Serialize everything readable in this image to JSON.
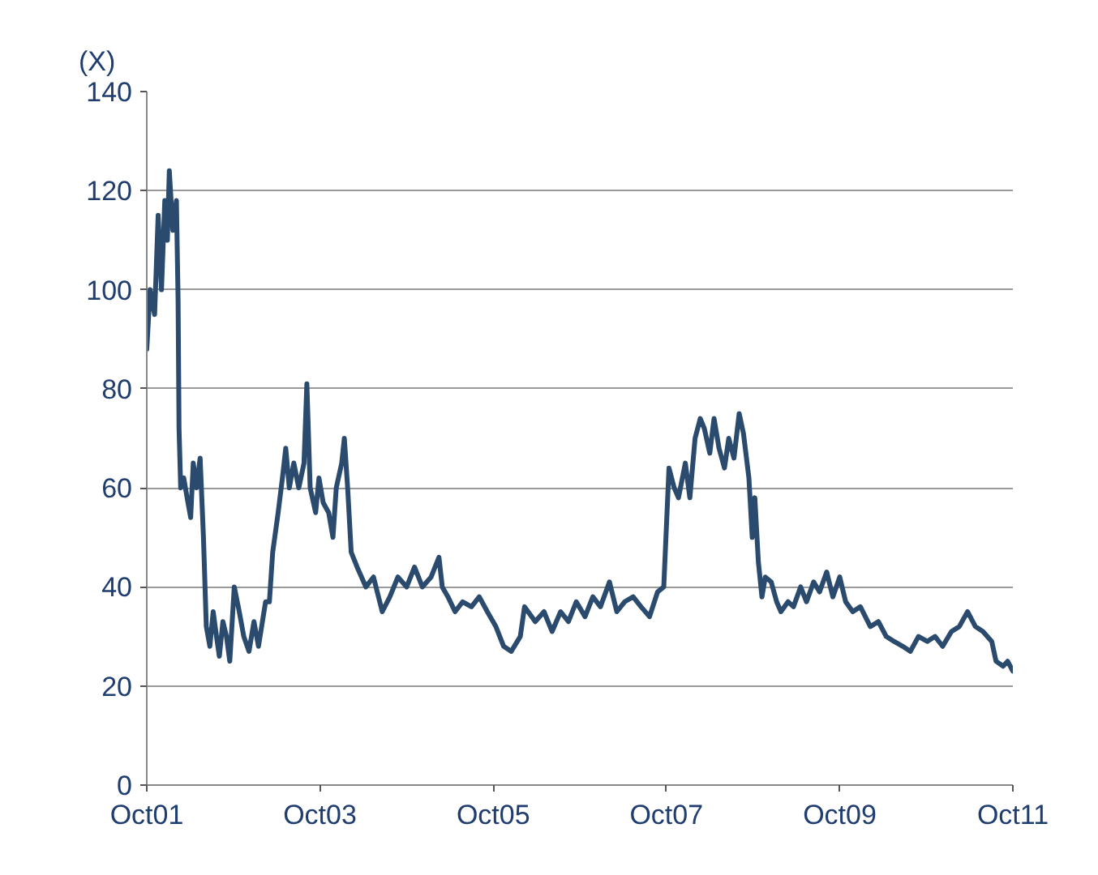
{
  "chart_data": {
    "type": "line",
    "ylabel": "(X)",
    "x": [
      "2001-10-01",
      "2001-10-15",
      "2001-11-03",
      "2001-11-18",
      "2001-12-02",
      "2001-12-16",
      "2001-12-27",
      "2002-01-04",
      "2002-01-19",
      "2002-02-03",
      "2002-02-10",
      "2002-02-14",
      "2002-02-21",
      "2002-03-06",
      "2002-03-20",
      "2002-04-04",
      "2002-04-15",
      "2002-04-29",
      "2002-05-14",
      "2002-05-28",
      "2002-06-09",
      "2002-06-24",
      "2002-07-08",
      "2002-07-22",
      "2002-08-03",
      "2002-08-18",
      "2002-09-02",
      "2002-09-16",
      "2002-10-05",
      "2002-10-26",
      "2002-11-14",
      "2002-12-06",
      "2002-12-27",
      "2003-01-15",
      "2003-02-14",
      "2003-03-02",
      "2003-03-16",
      "2003-04-08",
      "2003-04-26",
      "2003-05-10",
      "2003-05-25",
      "2003-06-13",
      "2003-07-04",
      "2003-07-26",
      "2003-08-07",
      "2003-08-21",
      "2003-09-13",
      "2003-09-27",
      "2003-10-15",
      "2003-11-07",
      "2003-11-25",
      "2003-12-09",
      "2004-01-01",
      "2004-01-12",
      "2004-01-26",
      "2004-02-10",
      "2004-03-06",
      "2004-04-12",
      "2004-05-14",
      "2004-06-20",
      "2004-07-22",
      "2004-08-25",
      "2004-10-01",
      "2004-11-03",
      "2004-12-06",
      "2005-01-12",
      "2005-02-14",
      "2005-02-28",
      "2005-03-24",
      "2005-04-23",
      "2005-05-25",
      "2005-07-01",
      "2005-08-03",
      "2005-09-06",
      "2005-10-12",
      "2005-11-14",
      "2005-12-16",
      "2006-01-23",
      "2006-02-10",
      "2006-03-27",
      "2006-05-03",
      "2006-06-06",
      "2006-07-12",
      "2006-08-14",
      "2006-09-16",
      "2006-10-23",
      "2006-11-25",
      "2006-12-27",
      "2007-02-03",
      "2007-03-06",
      "2007-04-08",
      "2007-05-14",
      "2007-06-16",
      "2007-07-22",
      "2007-08-25",
      "2007-09-20",
      "2007-10-12",
      "2007-11-03",
      "2007-11-21",
      "2007-12-20",
      "2008-01-08",
      "2008-01-30",
      "2008-02-21",
      "2008-03-09",
      "2008-04-01",
      "2008-04-19",
      "2008-05-10",
      "2008-06-02",
      "2008-06-20",
      "2008-07-12",
      "2008-08-03",
      "2008-08-21",
      "2008-09-13",
      "2008-09-27",
      "2008-10-08",
      "2008-10-23",
      "2008-11-07",
      "2008-11-21",
      "2008-12-16",
      "2009-01-08",
      "2009-01-26",
      "2009-02-25",
      "2009-03-20",
      "2009-04-19",
      "2009-05-14",
      "2009-06-13",
      "2009-07-08",
      "2009-08-07",
      "2009-09-02",
      "2009-10-01",
      "2009-10-26",
      "2009-11-25",
      "2009-12-27",
      "2010-02-07",
      "2010-03-13",
      "2010-04-15",
      "2010-05-18",
      "2010-06-24",
      "2010-07-26",
      "2010-08-29",
      "2010-10-05",
      "2010-11-07",
      "2010-12-09",
      "2011-01-15",
      "2011-02-17",
      "2011-03-24",
      "2011-04-26",
      "2011-05-28",
      "2011-07-04",
      "2011-07-22",
      "2011-08-21",
      "2011-09-09",
      "2011-10-01"
    ],
    "series": [
      {
        "color": "#2a4a6e",
        "values": [
          88,
          100,
          95,
          115,
          100,
          118,
          110,
          124,
          112,
          118,
          98,
          72,
          60,
          62,
          58,
          54,
          65,
          60,
          66,
          50,
          32,
          28,
          35,
          30,
          26,
          33,
          30,
          25,
          40,
          35,
          30,
          27,
          33,
          28,
          37,
          37,
          47,
          55,
          62,
          68,
          60,
          65,
          60,
          65,
          81,
          60,
          55,
          62,
          57,
          55,
          50,
          60,
          65,
          70,
          60,
          47,
          44,
          40,
          42,
          35,
          38,
          42,
          40,
          44,
          40,
          42,
          46,
          40,
          38,
          35,
          37,
          36,
          38,
          35,
          32,
          28,
          27,
          30,
          36,
          33,
          35,
          31,
          35,
          33,
          37,
          34,
          38,
          36,
          41,
          35,
          37,
          38,
          36,
          34,
          39,
          40,
          64,
          60,
          58,
          65,
          58,
          70,
          74,
          72,
          67,
          74,
          68,
          64,
          70,
          66,
          75,
          71,
          62,
          50,
          58,
          45,
          38,
          42,
          41,
          37,
          35,
          37,
          36,
          40,
          37,
          41,
          39,
          43,
          38,
          42,
          37,
          35,
          36,
          32,
          33,
          30,
          29,
          28,
          27,
          30,
          29,
          30,
          28,
          31,
          32,
          35,
          32,
          31,
          29,
          25,
          24,
          25,
          23
        ]
      }
    ],
    "xlim": [
      "2001-10-01",
      "2011-10-01"
    ],
    "xticks": [
      {
        "value": "2001-10-01",
        "label": "Oct01"
      },
      {
        "value": "2003-10-01",
        "label": "Oct03"
      },
      {
        "value": "2005-10-01",
        "label": "Oct05"
      },
      {
        "value": "2007-10-01",
        "label": "Oct07"
      },
      {
        "value": "2009-10-01",
        "label": "Oct09"
      },
      {
        "value": "2011-10-01",
        "label": "Oct11"
      }
    ],
    "ylim": [
      0,
      140
    ],
    "yticks": [
      0,
      20,
      40,
      60,
      80,
      100,
      120,
      140
    ],
    "grid": "y",
    "marker": "none",
    "line_style": "solid"
  }
}
